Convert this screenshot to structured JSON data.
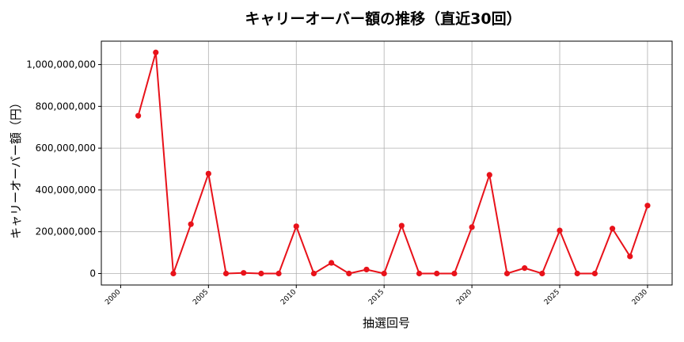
{
  "chart_data": {
    "type": "line",
    "title": "キャリーオーバー額の推移（直近30回）",
    "xlabel": "抽選回号",
    "ylabel": "キャリーオーバー額（円）",
    "xlim": [
      1998.9,
      2031.4
    ],
    "ylim": [
      -55000000,
      1112000000
    ],
    "xticks": [
      2000,
      2005,
      2010,
      2015,
      2020,
      2025,
      2030
    ],
    "xtick_labels": [
      "2000",
      "2005",
      "2010",
      "2015",
      "2020",
      "2025",
      "2030"
    ],
    "yticks": [
      0,
      200000000,
      400000000,
      600000000,
      800000000,
      1000000000
    ],
    "ytick_labels": [
      "0",
      "200,000,000",
      "400,000,000",
      "600,000,000",
      "800,000,000",
      "1,000,000,000"
    ],
    "grid": true,
    "line_color": "#e8121a",
    "series": [
      {
        "x": [
          2001,
          2002,
          2003,
          2004,
          2005,
          2006,
          2007,
          2008,
          2009,
          2010,
          2011,
          2012,
          2013,
          2014,
          2015,
          2016,
          2017,
          2018,
          2019,
          2020,
          2021,
          2022,
          2023,
          2024,
          2025,
          2026,
          2027,
          2028,
          2029,
          2030
        ],
        "values": [
          755000000,
          1058000000,
          0,
          236000000,
          478000000,
          0,
          3000000,
          0,
          0,
          226000000,
          0,
          51000000,
          0,
          19000000,
          0,
          229000000,
          0,
          0,
          0,
          222000000,
          472000000,
          0,
          26000000,
          0,
          206000000,
          0,
          0,
          215000000,
          82000000,
          325000000
        ]
      }
    ]
  }
}
